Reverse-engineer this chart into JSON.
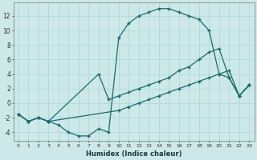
{
  "xlabel": "Humidex (Indice chaleur)",
  "bg_color": "#cce8e8",
  "line_color": "#1a6b6b",
  "grid_color": "#b0d8d8",
  "xlim": [
    -0.5,
    23.5
  ],
  "ylim": [
    -5.2,
    13.8
  ],
  "xticks": [
    0,
    1,
    2,
    3,
    4,
    5,
    6,
    7,
    8,
    9,
    10,
    11,
    12,
    13,
    14,
    15,
    16,
    17,
    18,
    19,
    20,
    21,
    22,
    23
  ],
  "yticks": [
    -4,
    -2,
    0,
    2,
    4,
    6,
    8,
    10,
    12
  ],
  "line1_x": [
    0,
    1,
    2,
    3,
    4,
    5,
    6,
    7,
    8,
    9,
    10,
    11,
    12,
    13,
    14,
    15,
    16,
    17,
    18,
    19,
    20,
    21,
    22,
    23
  ],
  "line1_y": [
    -1.5,
    -2.5,
    -2,
    -2.5,
    -3,
    -4,
    -4.5,
    -4.5,
    -3.5,
    -4,
    9,
    11,
    12,
    12.5,
    13,
    13,
    12.5,
    12,
    11.5,
    10,
    4,
    3.5,
    1,
    2.5
  ],
  "line2_x": [
    0,
    1,
    2,
    3,
    8,
    9,
    10,
    11,
    12,
    13,
    14,
    15,
    16,
    17,
    18,
    19,
    20,
    21,
    22,
    23
  ],
  "line2_y": [
    -1.5,
    -2.5,
    -2,
    -2.5,
    4,
    0.5,
    1,
    1.5,
    2,
    2.5,
    3,
    3.5,
    4.5,
    5,
    6,
    7,
    7.5,
    3.5,
    1,
    2.5
  ],
  "line3_x": [
    0,
    1,
    2,
    3,
    10,
    11,
    12,
    13,
    14,
    15,
    16,
    17,
    18,
    19,
    20,
    21,
    22,
    23
  ],
  "line3_y": [
    -1.5,
    -2.5,
    -2,
    -2.5,
    -1,
    -0.5,
    0,
    0.5,
    1,
    1.5,
    2,
    2.5,
    3,
    3.5,
    4,
    4.5,
    1,
    2.5
  ]
}
